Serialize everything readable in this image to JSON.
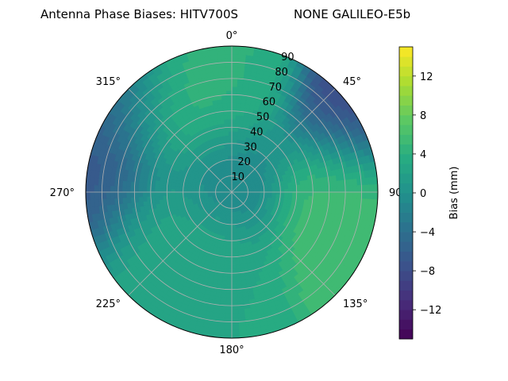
{
  "chart_data": {
    "type": "heatmap",
    "subtype": "polar-contour",
    "title": "Antenna Phase Biases: HITV700S",
    "subtitle": "NONE GALILEO-E5b",
    "angular_axis": {
      "direction": "clockwise",
      "zero_location": "top",
      "tick_labels": [
        "0°",
        "45°",
        "90°",
        "135°",
        "180°",
        "225°",
        "270°",
        "315°"
      ],
      "tick_values_deg": [
        0,
        45,
        90,
        135,
        180,
        225,
        270,
        315
      ]
    },
    "radial_axis": {
      "range": [
        0,
        90
      ],
      "tick_values": [
        10,
        20,
        30,
        40,
        50,
        60,
        70,
        80,
        90
      ],
      "tick_labels": [
        "10",
        "20",
        "30",
        "40",
        "50",
        "60",
        "70",
        "80",
        "90"
      ],
      "label_angle_deg": 22.5
    },
    "grid": true,
    "colorbar": {
      "label": "Bias (mm)",
      "range": [
        -15,
        15
      ],
      "tick_values": [
        -12,
        -8,
        -4,
        0,
        4,
        8,
        12
      ],
      "tick_labels": [
        "−12",
        "−8",
        "−4",
        "0",
        "4",
        "8",
        "12"
      ],
      "colormap": "viridis",
      "levels": 30,
      "placement": "right"
    },
    "surface_features": [
      {
        "azimuth_deg": 325,
        "radius": 62,
        "value_mm": 5.5
      },
      {
        "azimuth_deg": 85,
        "radius": 68,
        "value_mm": 6.5
      },
      {
        "azimuth_deg": 105,
        "radius": 70,
        "value_mm": 5.5
      },
      {
        "azimuth_deg": 0,
        "radius": 65,
        "value_mm": 4.0
      },
      {
        "azimuth_deg": 200,
        "radius": 50,
        "value_mm": 3.0
      },
      {
        "azimuth_deg": 240,
        "radius": 55,
        "value_mm": 3.0
      },
      {
        "azimuth_deg": 60,
        "radius": 88,
        "value_mm": -9.0
      },
      {
        "azimuth_deg": 270,
        "radius": 88,
        "value_mm": -7.0
      },
      {
        "azimuth_deg": 305,
        "radius": 88,
        "value_mm": -6.0
      },
      {
        "azimuth_deg": 0,
        "radius": 10,
        "value_mm": -1.5
      }
    ]
  }
}
